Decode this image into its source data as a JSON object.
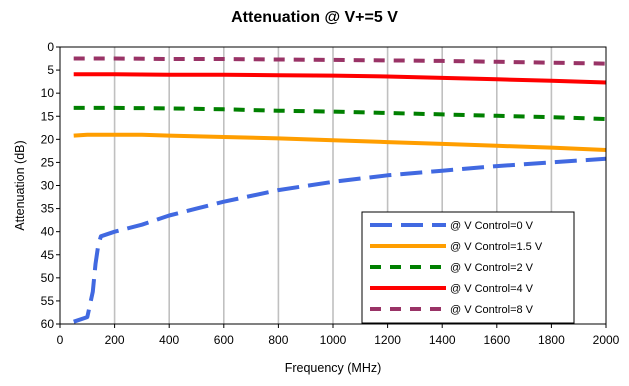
{
  "chart_data": {
    "type": "line",
    "title": "Attenuation @ V+=5 V",
    "xlabel": "Frequency (MHz)",
    "ylabel": "Attenuation (dB)",
    "xlim": [
      0,
      2000
    ],
    "ylim": [
      0,
      60
    ],
    "y_inverted": true,
    "x_ticks": [
      "0",
      "200",
      "400",
      "600",
      "800",
      "1000",
      "1200",
      "1400",
      "1600",
      "1800",
      "2000"
    ],
    "y_ticks": [
      "0",
      "5",
      "10",
      "15",
      "20",
      "25",
      "30",
      "35",
      "40",
      "45",
      "50",
      "55",
      "60"
    ],
    "grid": "vertical",
    "legend_position": "bottom-right",
    "series": [
      {
        "name": "@ V Control=0 V",
        "color": "#4169E1",
        "dash": "dashed",
        "x": [
          50,
          100,
          120,
          130,
          140,
          150,
          200,
          300,
          400,
          500,
          600,
          800,
          1000,
          1200,
          1400,
          1600,
          1800,
          2000
        ],
        "y": [
          59.5,
          58.5,
          53,
          47,
          43,
          41,
          40,
          38.5,
          36.5,
          35,
          33.5,
          31,
          29.2,
          27.8,
          26.8,
          25.8,
          25,
          24.2
        ]
      },
      {
        "name": "@ V Control=1.5 V",
        "color": "#FF9E00",
        "dash": "solid",
        "x": [
          50,
          100,
          200,
          300,
          400,
          600,
          800,
          1000,
          1200,
          1400,
          1600,
          1800,
          2000
        ],
        "y": [
          19.2,
          19.0,
          19.0,
          19.0,
          19.2,
          19.5,
          19.8,
          20.2,
          20.6,
          21.0,
          21.4,
          21.8,
          22.3
        ]
      },
      {
        "name": "@ V Control=2 V",
        "color": "#008000",
        "dash": "dashed",
        "x": [
          50,
          200,
          400,
          600,
          800,
          1000,
          1200,
          1400,
          1600,
          1800,
          2000
        ],
        "y": [
          13.2,
          13.2,
          13.3,
          13.5,
          13.8,
          14.0,
          14.3,
          14.6,
          14.9,
          15.2,
          15.6
        ]
      },
      {
        "name": "@ V Control=4 V",
        "color": "#FF0000",
        "dash": "solid",
        "x": [
          50,
          200,
          400,
          600,
          800,
          1000,
          1200,
          1400,
          1600,
          1800,
          2000
        ],
        "y": [
          5.9,
          5.9,
          6.0,
          6.0,
          6.1,
          6.2,
          6.4,
          6.7,
          7.0,
          7.3,
          7.7
        ]
      },
      {
        "name": "@ V Control=8 V",
        "color": "#993366",
        "dash": "dashed",
        "x": [
          50,
          200,
          400,
          600,
          800,
          1000,
          1200,
          1400,
          1600,
          1800,
          2000
        ],
        "y": [
          2.5,
          2.5,
          2.6,
          2.6,
          2.7,
          2.8,
          2.9,
          3.0,
          3.2,
          3.4,
          3.6
        ]
      }
    ]
  }
}
